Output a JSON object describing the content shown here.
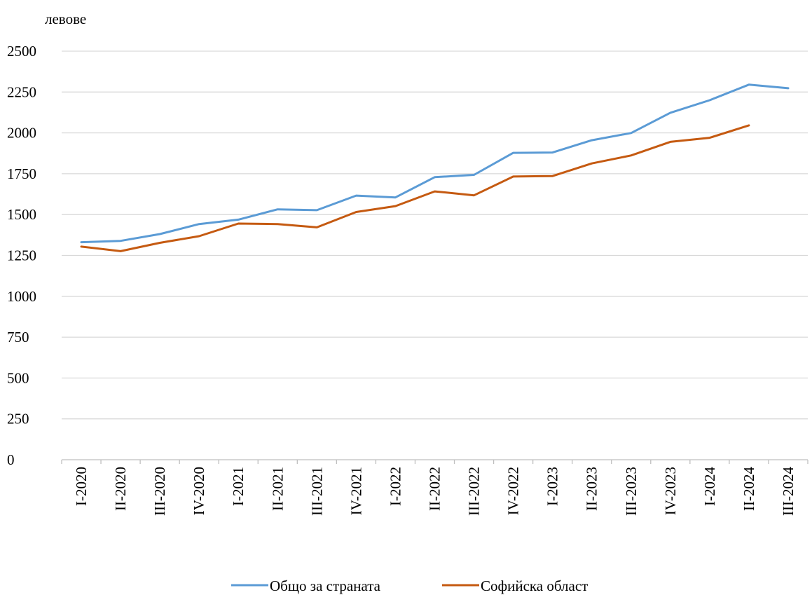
{
  "chart_data": {
    "type": "line",
    "title": "",
    "xlabel": "",
    "ylabel": "левове",
    "ylim": [
      0,
      2500
    ],
    "yticks": [
      0,
      250,
      500,
      750,
      1000,
      1250,
      1500,
      1750,
      2000,
      2250,
      2500
    ],
    "grid": true,
    "legend_position": "bottom",
    "categories": [
      "I-2020",
      "II-2020",
      "III-2020",
      "IV-2020",
      "I-2021",
      "II-2021",
      "III-2021",
      "IV-2021",
      "I-2022",
      "II-2022",
      "III-2022",
      "IV-2022",
      "I-2023",
      "II-2023",
      "III-2023",
      "IV-2023",
      "I-2024",
      "II-2024",
      "III-2024"
    ],
    "series": [
      {
        "name": "Общо за страната",
        "color": "#5b9bd5",
        "values": [
          1331,
          1339,
          1381,
          1442,
          1469,
          1532,
          1527,
          1616,
          1605,
          1729,
          1743,
          1878,
          1880,
          1955,
          1999,
          2123,
          2200,
          2295,
          2273
        ]
      },
      {
        "name": "Софийска област",
        "color": "#c55a11",
        "values": [
          1304,
          1276,
          1327,
          1368,
          1445,
          1442,
          1422,
          1516,
          1552,
          1642,
          1618,
          1733,
          1736,
          1813,
          1862,
          1945,
          1970,
          2046,
          null
        ]
      }
    ]
  }
}
